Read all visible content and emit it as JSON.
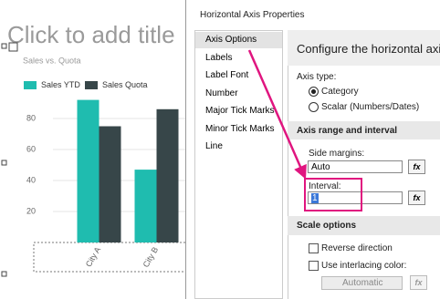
{
  "slide": {
    "title_placeholder": "Click to add title"
  },
  "chart_data": {
    "type": "bar",
    "title": "Sales vs. Quota",
    "categories": [
      "City A",
      "City B"
    ],
    "series": [
      {
        "name": "Sales YTD",
        "color": "#1fbcaf",
        "values": [
          92,
          47
        ]
      },
      {
        "name": "Sales Quota",
        "color": "#374649",
        "values": [
          75,
          86
        ]
      }
    ],
    "ylim": [
      0,
      100
    ],
    "yticks": [
      20,
      40,
      60,
      80
    ],
    "grid": true
  },
  "dialog": {
    "title": "Horizontal Axis Properties",
    "nav": [
      "Axis Options",
      "Labels",
      "Label Font",
      "Number",
      "Major Tick Marks",
      "Minor Tick Marks",
      "Line"
    ],
    "heading": "Configure the horizontal axis op",
    "axis_type": {
      "label": "Axis type:",
      "options": [
        "Category",
        "Scalar (Numbers/Dates)"
      ]
    },
    "range_section": {
      "title": "Axis range and interval",
      "side_margins_label": "Side margins:",
      "side_margins_value": "Auto",
      "interval_label": "Interval:",
      "interval_value": "1",
      "fx": "fx"
    },
    "scale_section": {
      "title": "Scale options",
      "reverse": "Reverse direction",
      "interlacing": "Use interlacing color:",
      "interlacing_value": "Automatic"
    }
  }
}
